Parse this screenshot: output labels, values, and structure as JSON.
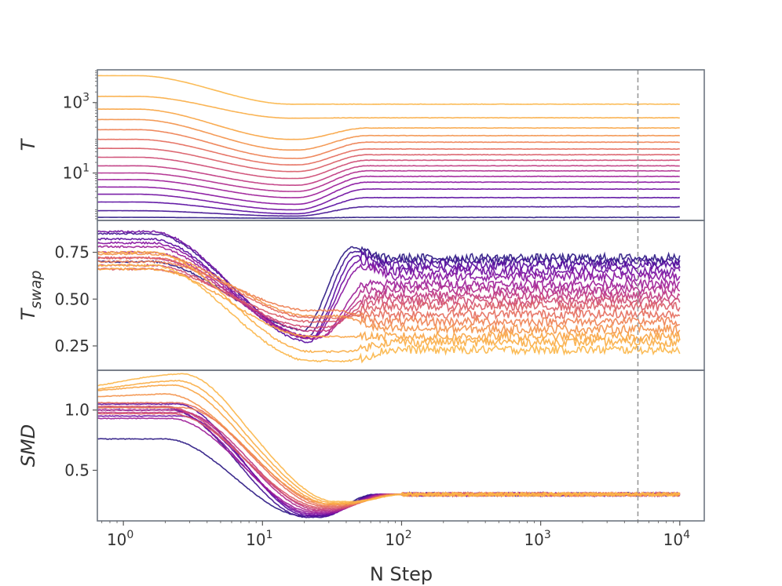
{
  "chart_data": {
    "type": "line",
    "xlabel": "N Step",
    "xscale": "log",
    "xlim": [
      0.65,
      15000
    ],
    "x_ticks": [
      {
        "value": 1,
        "base": "10",
        "exp": "0"
      },
      {
        "value": 10,
        "base": "10",
        "exp": "1"
      },
      {
        "value": 100,
        "base": "10",
        "exp": "2"
      },
      {
        "value": 1000,
        "base": "10",
        "exp": "3"
      },
      {
        "value": 10000,
        "base": "10",
        "exp": "4"
      }
    ],
    "vline_x": 5000,
    "n_replicas": 16,
    "colormap": [
      "#2c1a84",
      "#5b0aa1",
      "#8f13a0",
      "#b83189",
      "#d6546c",
      "#ec7a55",
      "#f8a444",
      "#fbb64a"
    ],
    "panels": [
      {
        "id": "T",
        "ylabel_main": "T",
        "ylabel_sub": "",
        "yscale": "log",
        "ylim": [
          0.45,
          8500
        ],
        "y_ticks": [
          {
            "value": 10,
            "base": "10",
            "exp": "1"
          },
          {
            "value": 1000,
            "base": "10",
            "exp": "3"
          }
        ],
        "start_values": [
          0.55,
          0.85,
          1.5,
          2.5,
          4,
          6.5,
          10,
          16,
          28,
          50,
          90,
          170,
          330,
          650,
          1500,
          5800
        ],
        "final_values": [
          0.55,
          1.1,
          2.0,
          3.5,
          5.5,
          8.0,
          11.5,
          16,
          23,
          33,
          48,
          75,
          115,
          190,
          370,
          900
        ],
        "min_values": [
          0.52,
          0.6,
          0.7,
          0.9,
          1.3,
          2.0,
          3.0,
          4.5,
          7.0,
          11,
          17,
          26,
          45,
          90,
          360,
          900
        ]
      },
      {
        "id": "T_swap",
        "ylabel_main": "T",
        "ylabel_sub": "swap",
        "yscale": "linear",
        "ylim": [
          0.12,
          0.92
        ],
        "y_ticks": [
          {
            "value": 0.25,
            "label": "0.25"
          },
          {
            "value": 0.5,
            "label": "0.50"
          },
          {
            "value": 0.75,
            "label": "0.75"
          }
        ],
        "start_values": [
          0.7,
          0.85,
          0.82,
          0.86,
          0.8,
          0.78,
          0.75,
          0.72,
          0.68,
          0.66,
          0.72,
          0.7,
          0.74,
          0.66,
          0.75,
          0.68
        ],
        "final_values": [
          0.72,
          0.7,
          0.68,
          0.65,
          0.62,
          0.58,
          0.55,
          0.52,
          0.49,
          0.46,
          0.42,
          0.38,
          0.34,
          0.3,
          0.27,
          0.23
        ],
        "dip_values": [
          0.33,
          0.29,
          0.27,
          0.29,
          0.3,
          0.29,
          0.3,
          0.33,
          0.35,
          0.38,
          0.4,
          0.44,
          0.41,
          0.3,
          0.22,
          0.17
        ]
      },
      {
        "id": "SMD",
        "ylabel_main": "SMD",
        "ylabel_sub": "",
        "yscale": "linear",
        "ylim": [
          0.08,
          1.33
        ],
        "y_ticks": [
          {
            "value": 0.5,
            "label": "0.5"
          },
          {
            "value": 1.0,
            "label": "1.0"
          }
        ],
        "start_values": [
          0.76,
          1.0,
          1.05,
          0.95,
          1.02,
          0.93,
          1.0,
          0.98,
          1.03,
          0.97,
          1.06,
          1.02,
          1.12,
          1.18,
          1.2,
          1.24
        ],
        "final_value": 0.3,
        "min_values": [
          0.12,
          0.11,
          0.12,
          0.13,
          0.14,
          0.15,
          0.16,
          0.17,
          0.18,
          0.19,
          0.2,
          0.21,
          0.22,
          0.22,
          0.23,
          0.24
        ]
      }
    ]
  }
}
